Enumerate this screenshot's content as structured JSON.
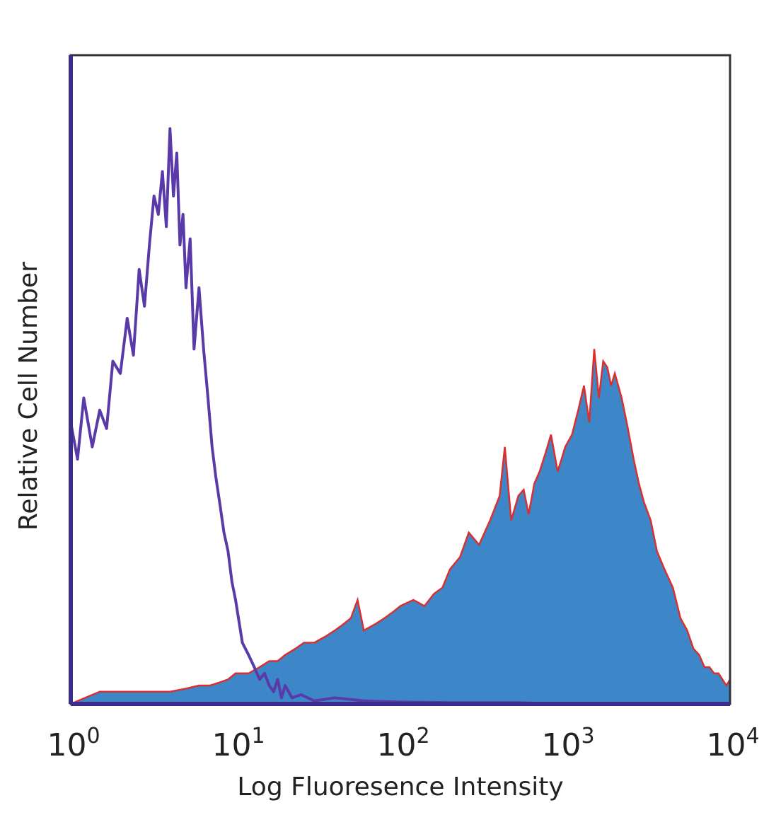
{
  "chart_data": {
    "type": "area",
    "title": "",
    "xlabel": "Log Fluoresence Intensity",
    "ylabel": "Relative Cell Number",
    "xscale": "log",
    "xlim": [
      1,
      10000
    ],
    "ylim": [
      0,
      1
    ],
    "grid": false,
    "legend": "none",
    "x_ticks": [
      {
        "base": "10",
        "exp": "0"
      },
      {
        "base": "10",
        "exp": "1"
      },
      {
        "base": "10",
        "exp": "2"
      },
      {
        "base": "10",
        "exp": "3"
      },
      {
        "base": "10",
        "exp": "4"
      }
    ],
    "series": [
      {
        "style": "outline",
        "color": "#5a3aa8",
        "x": [
          1.0,
          1.1,
          1.2,
          1.35,
          1.5,
          1.65,
          1.8,
          2.0,
          2.2,
          2.4,
          2.6,
          2.8,
          3.0,
          3.2,
          3.4,
          3.6,
          3.8,
          4.0,
          4.2,
          4.4,
          4.6,
          4.8,
          5.0,
          5.3,
          5.6,
          6.0,
          6.4,
          6.8,
          7.2,
          7.6,
          8.0,
          8.5,
          9.0,
          9.5,
          10.0,
          11.0,
          12.0,
          13.0,
          14.0,
          15.0,
          16.0,
          17.0,
          18.0,
          19.0,
          20.0,
          22.0,
          25.0,
          30.0,
          40.0,
          60.0,
          100.0,
          200.0,
          500.0,
          1000.0,
          10000.0
        ],
        "y": [
          0.46,
          0.4,
          0.5,
          0.42,
          0.48,
          0.45,
          0.56,
          0.54,
          0.63,
          0.57,
          0.71,
          0.65,
          0.75,
          0.83,
          0.8,
          0.87,
          0.78,
          0.94,
          0.83,
          0.9,
          0.75,
          0.8,
          0.68,
          0.76,
          0.58,
          0.68,
          0.58,
          0.5,
          0.42,
          0.37,
          0.33,
          0.28,
          0.25,
          0.2,
          0.17,
          0.1,
          0.08,
          0.06,
          0.04,
          0.05,
          0.03,
          0.02,
          0.04,
          0.01,
          0.03,
          0.01,
          0.015,
          0.005,
          0.01,
          0.005,
          0.003,
          0.002,
          0.002,
          0.0,
          0.0
        ]
      },
      {
        "style": "filled",
        "color": "#3d87c8",
        "edge_color": "#d83030",
        "x": [
          1.0,
          1.5,
          2.0,
          3.0,
          4.0,
          5.0,
          6.0,
          7.0,
          8.0,
          9.0,
          10.0,
          12.0,
          14.0,
          16.0,
          18.0,
          20.0,
          23.0,
          26.0,
          30.0,
          35.0,
          40.0,
          45.0,
          50.0,
          55.0,
          60.0,
          70.0,
          80.0,
          90.0,
          100.0,
          120.0,
          140.0,
          160.0,
          180.0,
          200.0,
          230.0,
          260.0,
          300.0,
          350.0,
          400.0,
          430.0,
          470.0,
          520.0,
          560.0,
          600.0,
          650.0,
          700.0,
          760.0,
          820.0,
          900.0,
          950.0,
          1000.0,
          1100.0,
          1200.0,
          1300.0,
          1400.0,
          1500.0,
          1600.0,
          1700.0,
          1800.0,
          1900.0,
          2000.0,
          2200.0,
          2400.0,
          2600.0,
          2800.0,
          3000.0,
          3300.0,
          3600.0,
          4000.0,
          4500.0,
          5000.0,
          5500.0,
          6000.0,
          6500.0,
          7000.0,
          7500.0,
          8000.0,
          8500.0,
          9000.0,
          9500.0,
          10000.0
        ],
        "y": [
          0.0,
          0.02,
          0.02,
          0.02,
          0.02,
          0.025,
          0.03,
          0.03,
          0.035,
          0.04,
          0.05,
          0.05,
          0.06,
          0.07,
          0.07,
          0.08,
          0.09,
          0.1,
          0.1,
          0.11,
          0.12,
          0.13,
          0.14,
          0.17,
          0.12,
          0.13,
          0.14,
          0.15,
          0.16,
          0.17,
          0.16,
          0.18,
          0.19,
          0.22,
          0.24,
          0.28,
          0.26,
          0.3,
          0.34,
          0.42,
          0.3,
          0.34,
          0.35,
          0.31,
          0.36,
          0.38,
          0.41,
          0.44,
          0.38,
          0.4,
          0.42,
          0.44,
          0.48,
          0.52,
          0.46,
          0.58,
          0.5,
          0.56,
          0.55,
          0.52,
          0.54,
          0.5,
          0.45,
          0.4,
          0.36,
          0.33,
          0.3,
          0.25,
          0.22,
          0.19,
          0.14,
          0.12,
          0.09,
          0.08,
          0.06,
          0.06,
          0.05,
          0.05,
          0.04,
          0.03,
          0.04
        ]
      }
    ]
  }
}
